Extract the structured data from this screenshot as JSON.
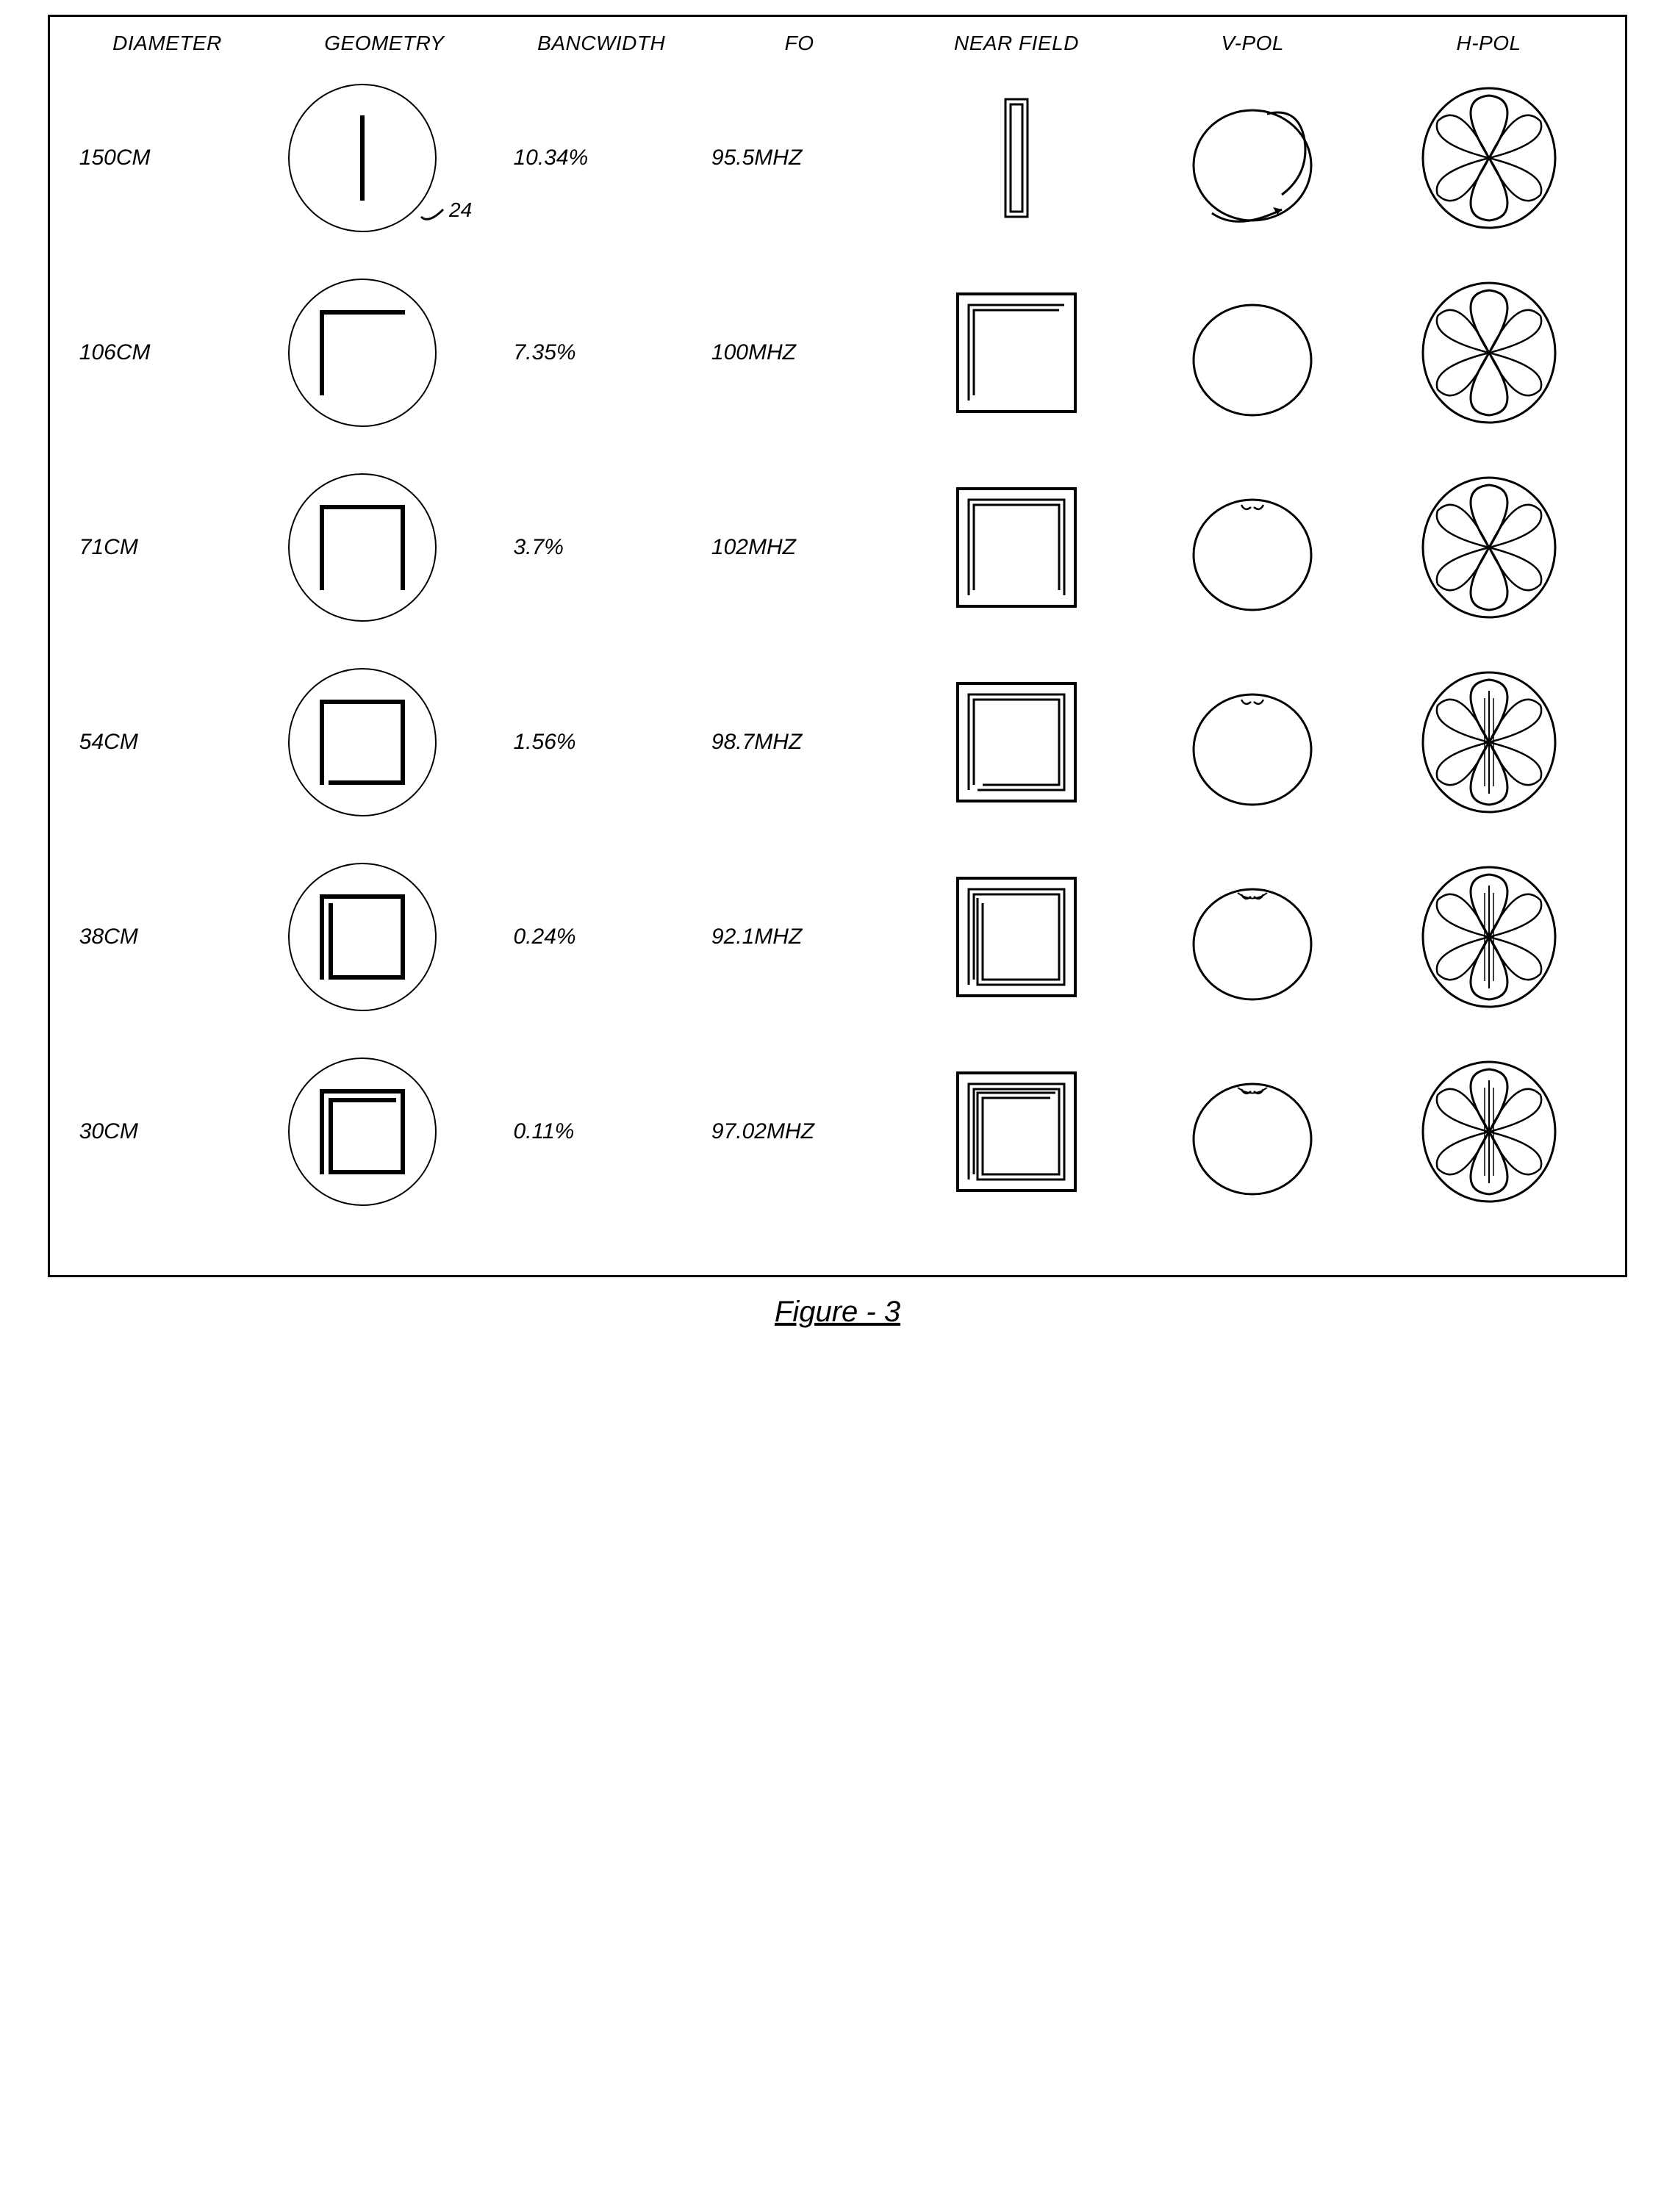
{
  "caption": "Figure - 3",
  "annotation": "24",
  "headers": {
    "diameter": "DIAMETER",
    "geometry": "GEOMETRY",
    "bandwidth": "BANCWIDTH",
    "fo": "FO",
    "nearfield": "NEAR FIELD",
    "vpol": "V-POL",
    "hpol": "H-POL"
  },
  "stroke_color": "#000000",
  "stroke_width_thin": 2.5,
  "stroke_width_thick": 6,
  "circle_stroke": 2,
  "rows": [
    {
      "diameter": "150CM",
      "bandwidth": "10.34%",
      "fo": "95.5MHZ",
      "geometry_turns": 0,
      "nearfield_turns": 0,
      "has_annotation": true
    },
    {
      "diameter": "106CM",
      "bandwidth": "7.35%",
      "fo": "100MHZ",
      "geometry_turns": 1,
      "nearfield_turns": 1
    },
    {
      "diameter": "71CM",
      "bandwidth": "3.7%",
      "fo": "102MHZ",
      "geometry_turns": 2,
      "nearfield_turns": 2
    },
    {
      "diameter": "54CM",
      "bandwidth": "1.56%",
      "fo": "98.7MHZ",
      "geometry_turns": 3,
      "nearfield_turns": 3
    },
    {
      "diameter": "38CM",
      "bandwidth": "0.24%",
      "fo": "92.1MHZ",
      "geometry_turns": 4,
      "nearfield_turns": 4
    },
    {
      "diameter": "30CM",
      "bandwidth": "0.11%",
      "fo": "97.02MHZ",
      "geometry_turns": 5,
      "nearfield_turns": 5
    }
  ]
}
